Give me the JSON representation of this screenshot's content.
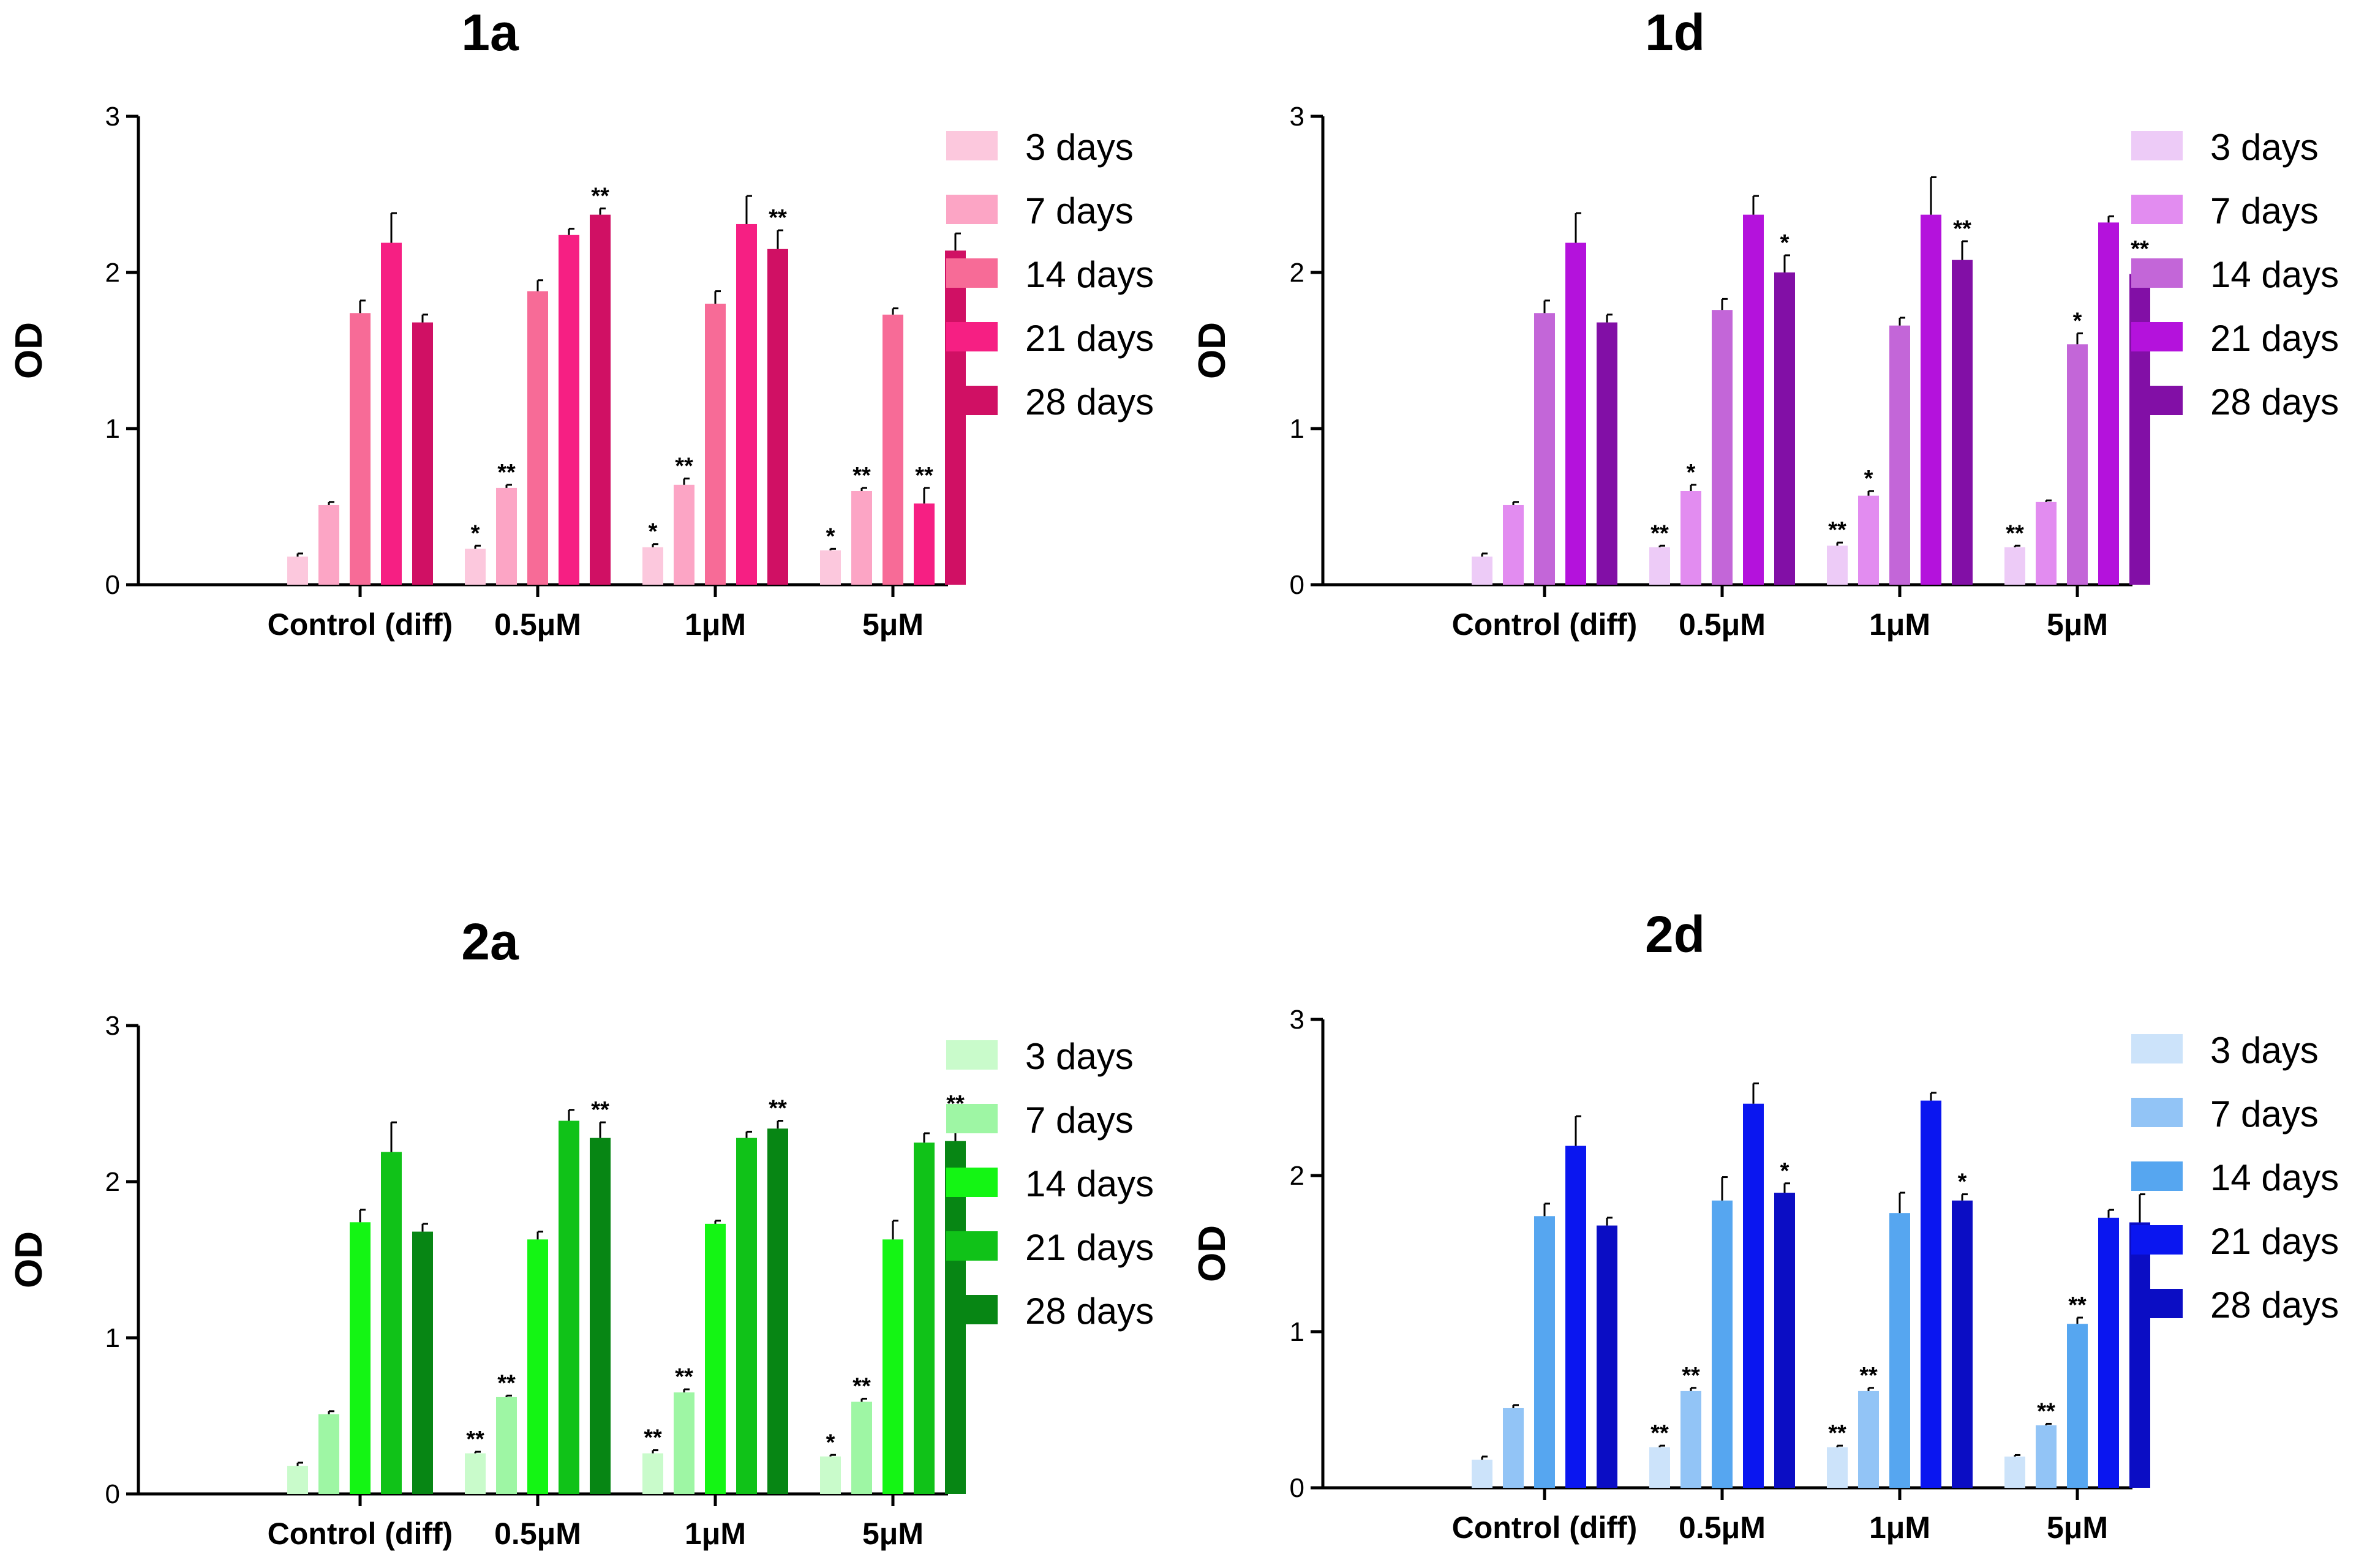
{
  "chart_data": [
    {
      "type": "bar",
      "title": "1a",
      "ylabel": "OD",
      "xlabel": "",
      "ylim": [
        0,
        3
      ],
      "yticks": [
        "0",
        "1",
        "2",
        "3"
      ],
      "categories": [
        "Control (diff)",
        "0.5μM",
        "1μM",
        "5μM"
      ],
      "legend_position": "right",
      "series": [
        {
          "name": "3 days",
          "color": "#FCC8DD",
          "values": [
            0.18,
            0.23,
            0.24,
            0.22
          ],
          "errors": [
            0.02,
            0.02,
            0.02,
            0.01
          ],
          "sig": [
            "",
            "*",
            "*",
            "*"
          ]
        },
        {
          "name": "7 days",
          "color": "#FCA5C5",
          "values": [
            0.51,
            0.62,
            0.64,
            0.6
          ],
          "errors": [
            0.02,
            0.02,
            0.04,
            0.02
          ],
          "sig": [
            "",
            "**",
            "**",
            "**"
          ]
        },
        {
          "name": "14 days",
          "color": "#F76B97",
          "values": [
            1.74,
            1.88,
            1.8,
            1.73
          ],
          "errors": [
            0.08,
            0.07,
            0.08,
            0.04
          ],
          "sig": [
            "",
            "",
            "",
            ""
          ]
        },
        {
          "name": "21 days",
          "color": "#F61F83",
          "values": [
            2.19,
            2.24,
            2.31,
            0.52
          ],
          "errors": [
            0.19,
            0.04,
            0.18,
            0.1
          ],
          "sig": [
            "",
            "",
            "",
            "**"
          ]
        },
        {
          "name": "28 days",
          "color": "#D01064",
          "values": [
            1.68,
            2.37,
            2.15,
            2.14
          ],
          "errors": [
            0.05,
            0.04,
            0.12,
            0.11
          ],
          "sig": [
            "",
            "**",
            "**",
            "**"
          ]
        }
      ]
    },
    {
      "type": "bar",
      "title": "1d",
      "ylabel": "OD",
      "xlabel": "",
      "ylim": [
        0,
        3
      ],
      "yticks": [
        "0",
        "1",
        "2",
        "3"
      ],
      "categories": [
        "Control (diff)",
        "0.5μM",
        "1μM",
        "5μM"
      ],
      "legend_position": "right",
      "series": [
        {
          "name": "3 days",
          "color": "#EDCBF7",
          "values": [
            0.18,
            0.24,
            0.25,
            0.24
          ],
          "errors": [
            0.02,
            0.01,
            0.02,
            0.01
          ],
          "sig": [
            "",
            "**",
            "**",
            "**"
          ]
        },
        {
          "name": "7 days",
          "color": "#E28CF0",
          "values": [
            0.51,
            0.6,
            0.57,
            0.53
          ],
          "errors": [
            0.02,
            0.04,
            0.03,
            0.01
          ],
          "sig": [
            "",
            "*",
            "*",
            ""
          ]
        },
        {
          "name": "14 days",
          "color": "#C366D8",
          "values": [
            1.74,
            1.76,
            1.66,
            1.54
          ],
          "errors": [
            0.08,
            0.07,
            0.05,
            0.07
          ],
          "sig": [
            "",
            "",
            "",
            "*"
          ]
        },
        {
          "name": "21 days",
          "color": "#B412DC",
          "values": [
            2.19,
            2.37,
            2.37,
            2.32
          ],
          "errors": [
            0.19,
            0.12,
            0.24,
            0.04
          ],
          "sig": [
            "",
            "",
            "",
            ""
          ]
        },
        {
          "name": "28 days",
          "color": "#820FA6",
          "values": [
            1.68,
            2.0,
            2.08,
            1.99
          ],
          "errors": [
            0.05,
            0.11,
            0.12,
            0.08
          ],
          "sig": [
            "",
            "*",
            "**",
            "**"
          ]
        }
      ]
    },
    {
      "type": "bar",
      "title": "2a",
      "ylabel": "OD",
      "xlabel": "",
      "ylim": [
        0,
        3
      ],
      "yticks": [
        "0",
        "1",
        "2",
        "3"
      ],
      "categories": [
        "Control (diff)",
        "0.5μM",
        "1μM",
        "5μM"
      ],
      "legend_position": "right",
      "series": [
        {
          "name": "3 days",
          "color": "#C9FBCB",
          "values": [
            0.18,
            0.26,
            0.26,
            0.24
          ],
          "errors": [
            0.02,
            0.01,
            0.02,
            0.01
          ],
          "sig": [
            "",
            "**",
            "**",
            "*"
          ]
        },
        {
          "name": "7 days",
          "color": "#9EF6A4",
          "values": [
            0.51,
            0.62,
            0.65,
            0.59
          ],
          "errors": [
            0.02,
            0.01,
            0.02,
            0.02
          ],
          "sig": [
            "",
            "**",
            "**",
            "**"
          ]
        },
        {
          "name": "14 days",
          "color": "#14F514",
          "values": [
            1.74,
            1.63,
            1.73,
            1.63
          ],
          "errors": [
            0.08,
            0.05,
            0.02,
            0.12
          ],
          "sig": [
            "",
            "",
            "",
            ""
          ]
        },
        {
          "name": "21 days",
          "color": "#10C218",
          "values": [
            2.19,
            2.39,
            2.28,
            2.25
          ],
          "errors": [
            0.19,
            0.07,
            0.04,
            0.06
          ],
          "sig": [
            "",
            "",
            "",
            ""
          ]
        },
        {
          "name": "28 days",
          "color": "#078614",
          "values": [
            1.68,
            2.28,
            2.34,
            2.26
          ],
          "errors": [
            0.05,
            0.1,
            0.05,
            0.16
          ],
          "sig": [
            "",
            "**",
            "**",
            "**"
          ]
        }
      ]
    },
    {
      "type": "bar",
      "title": "2d",
      "ylabel": "OD",
      "xlabel": "",
      "ylim": [
        0,
        3
      ],
      "yticks": [
        "0",
        "1",
        "2",
        "3"
      ],
      "categories": [
        "Control (diff)",
        "0.5μM",
        "1μM",
        "5μM"
      ],
      "legend_position": "right",
      "series": [
        {
          "name": "3 days",
          "color": "#CCE3FA",
          "values": [
            0.18,
            0.26,
            0.26,
            0.2
          ],
          "errors": [
            0.02,
            0.01,
            0.01,
            0.01
          ],
          "sig": [
            "",
            "**",
            "**",
            ""
          ]
        },
        {
          "name": "7 days",
          "color": "#92C4F6",
          "values": [
            0.51,
            0.62,
            0.62,
            0.4
          ],
          "errors": [
            0.02,
            0.02,
            0.02,
            0.01
          ],
          "sig": [
            "",
            "**",
            "**",
            "**"
          ]
        },
        {
          "name": "14 days",
          "color": "#56A6F0",
          "values": [
            1.74,
            1.84,
            1.76,
            1.05
          ],
          "errors": [
            0.08,
            0.15,
            0.13,
            0.04
          ],
          "sig": [
            "",
            "",
            "",
            "**"
          ]
        },
        {
          "name": "21 days",
          "color": "#0A16F0",
          "values": [
            2.19,
            2.46,
            2.48,
            1.73
          ],
          "errors": [
            0.19,
            0.13,
            0.05,
            0.05
          ],
          "sig": [
            "",
            "",
            "",
            ""
          ]
        },
        {
          "name": "28 days",
          "color": "#0B0DC4",
          "values": [
            1.68,
            1.89,
            1.84,
            1.7
          ],
          "errors": [
            0.05,
            0.06,
            0.04,
            0.18
          ],
          "sig": [
            "",
            "*",
            "*",
            "*"
          ]
        }
      ]
    }
  ]
}
